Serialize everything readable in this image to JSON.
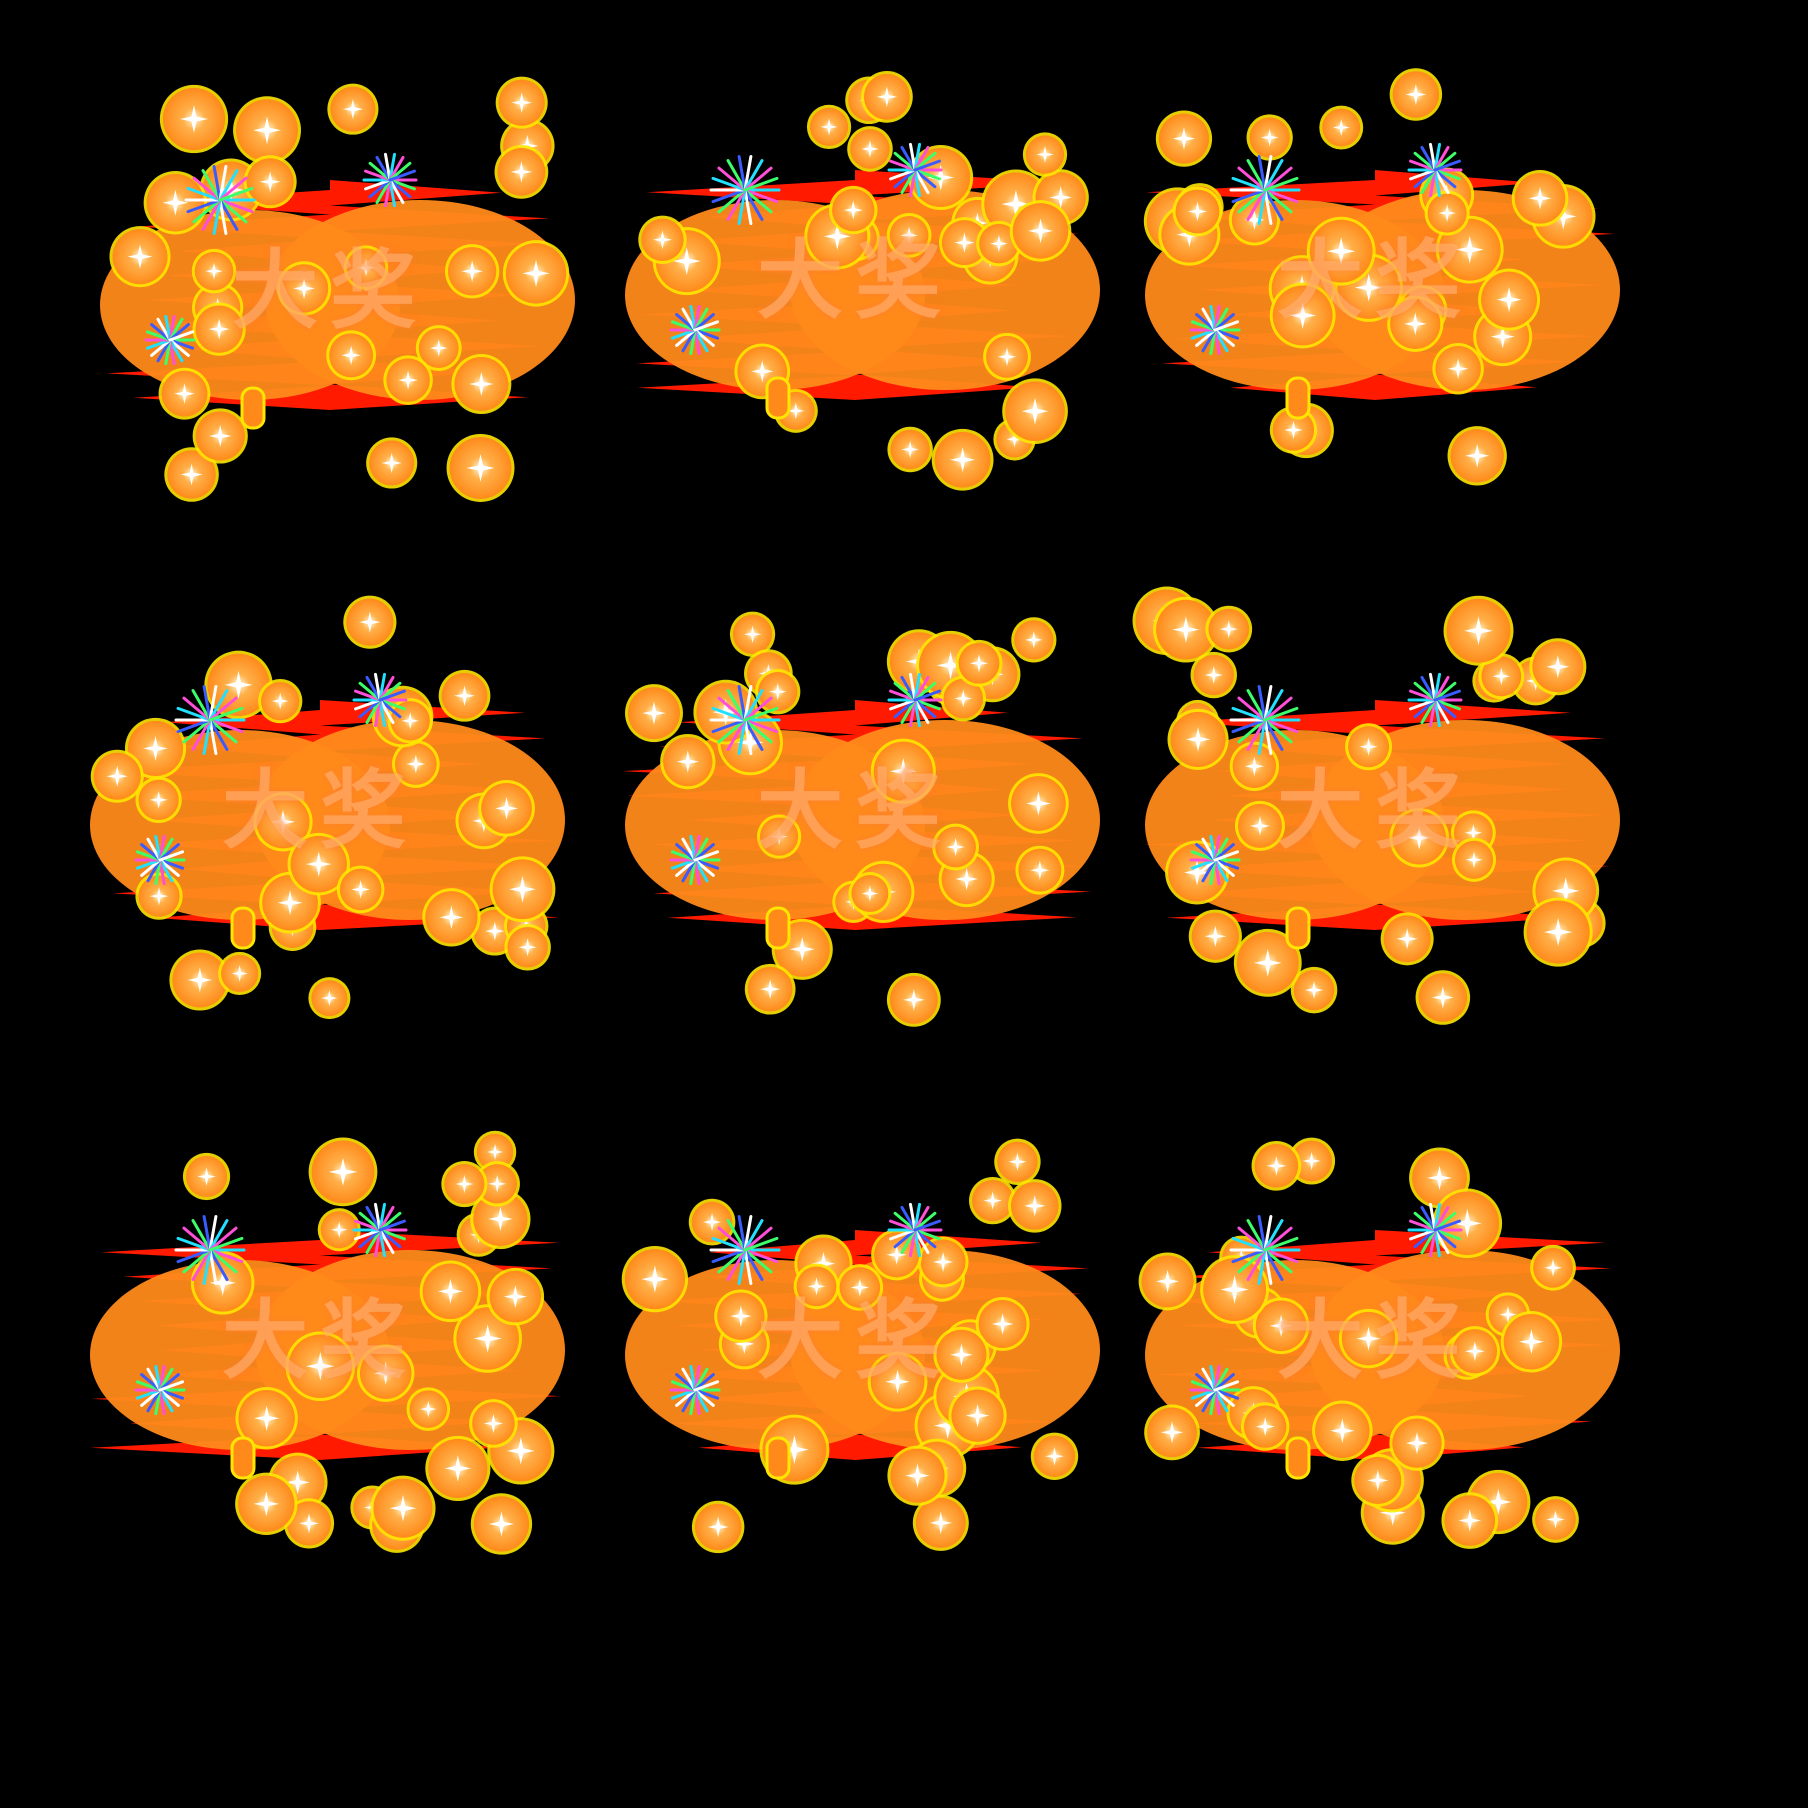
{
  "sprite_sheet": {
    "background": "#000000",
    "colors": {
      "red": "#ff1a00",
      "orange": "#ff8a1a",
      "orange_light": "#ffb04a",
      "gold": "#ffe600",
      "sparkle": "#fff8d6"
    },
    "icons": [
      "firework-burst-icon",
      "coin-bubble-icon",
      "sparkle-icon"
    ],
    "frames": [
      {
        "text": "大奖"
      },
      {
        "text": "大奖"
      },
      {
        "text": "大奖"
      },
      {
        "text": "大奖"
      },
      {
        "text": "大奖"
      },
      {
        "text": "大奖"
      },
      {
        "text": "大奖"
      },
      {
        "text": "大奖"
      },
      {
        "text": "大奖"
      }
    ]
  }
}
